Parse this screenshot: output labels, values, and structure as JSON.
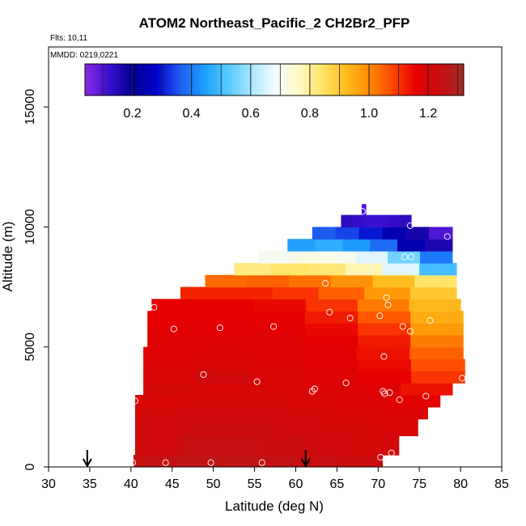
{
  "chart_data": {
    "type": "heatmap",
    "title": "ATOM2 Northeast_Pacific_2 CH2Br2_PFP",
    "annotations": [
      "Flts: 10,11",
      "MMDD: 0219,0221"
    ],
    "xlabel": "Latitude (deg N)",
    "ylabel": "Altitude (m)",
    "xlim": [
      30,
      85
    ],
    "ylim": [
      0,
      17500
    ],
    "xticks": [
      30,
      35,
      40,
      45,
      50,
      55,
      60,
      65,
      70,
      75,
      80,
      85
    ],
    "yticks": [
      0,
      5000,
      10000,
      15000
    ],
    "colorbar": {
      "range": [
        0.04,
        1.32
      ],
      "ticks": [
        "0.2",
        "0.4",
        "0.6",
        "0.8",
        "1.0",
        "1.2"
      ],
      "tick_values": [
        0.2,
        0.4,
        0.6,
        0.8,
        1.0,
        1.2
      ],
      "colors": [
        "#8B2BE2",
        "#3A0FD0",
        "#00008F",
        "#0000CD",
        "#1E5BEF",
        "#1C9BFF",
        "#52C8FF",
        "#A5E6FF",
        "#F2FBFF",
        "#FFF8C8",
        "#FFE56A",
        "#FFBE1F",
        "#FF8C00",
        "#FF4500",
        "#E60000",
        "#C80E0E",
        "#A52A2A"
      ]
    },
    "field_rows": [
      {
        "alt_low": 0,
        "alt_high": 500,
        "lat_min": 40.3,
        "lat_max": 70.5,
        "values": [
          1.25,
          1.26,
          1.26,
          1.25,
          1.24,
          1.23
        ]
      },
      {
        "alt_low": 500,
        "alt_high": 1300,
        "lat_min": 40.5,
        "lat_max": 72.5,
        "values": [
          1.22,
          1.24,
          1.24,
          1.23,
          1.22,
          1.21
        ]
      },
      {
        "alt_low": 1300,
        "alt_high": 2000,
        "lat_min": 40.5,
        "lat_max": 74.8,
        "values": [
          1.22,
          1.23,
          1.23,
          1.22,
          1.21,
          1.2
        ]
      },
      {
        "alt_low": 2000,
        "alt_high": 2500,
        "lat_min": 40.5,
        "lat_max": 76.0,
        "values": [
          1.21,
          1.22,
          1.22,
          1.21,
          1.2,
          1.19
        ]
      },
      {
        "alt_low": 2500,
        "alt_high": 3000,
        "lat_min": 40.5,
        "lat_max": 77.5,
        "values": [
          1.2,
          1.21,
          1.21,
          1.2,
          1.19,
          1.17
        ]
      },
      {
        "alt_low": 3000,
        "alt_high": 3500,
        "lat_min": 41.5,
        "lat_max": 79.0,
        "values": [
          1.21,
          1.2,
          1.2,
          1.19,
          1.18,
          1.14
        ]
      },
      {
        "alt_low": 3500,
        "alt_high": 4000,
        "lat_min": 41.5,
        "lat_max": 80.5,
        "values": [
          1.2,
          1.22,
          1.2,
          1.18,
          1.16,
          1.1
        ]
      },
      {
        "alt_low": 4000,
        "alt_high": 4500,
        "lat_min": 41.5,
        "lat_max": 80.5,
        "values": [
          1.19,
          1.2,
          1.19,
          1.17,
          1.15,
          1.07
        ]
      },
      {
        "alt_low": 4500,
        "alt_high": 5000,
        "lat_min": 41.5,
        "lat_max": 80.3,
        "values": [
          1.18,
          1.19,
          1.18,
          1.17,
          1.14,
          1.05
        ]
      },
      {
        "alt_low": 5000,
        "alt_high": 5500,
        "lat_min": 42.0,
        "lat_max": 80.3,
        "values": [
          1.18,
          1.18,
          1.18,
          1.16,
          1.13,
          1.02
        ]
      },
      {
        "alt_low": 5500,
        "alt_high": 6000,
        "lat_min": 42.0,
        "lat_max": 80.3,
        "values": [
          1.17,
          1.17,
          1.17,
          1.15,
          1.1,
          0.98
        ]
      },
      {
        "alt_low": 6000,
        "alt_high": 6500,
        "lat_min": 42.0,
        "lat_max": 80.3,
        "values": [
          1.16,
          1.16,
          1.16,
          1.13,
          1.06,
          0.95
        ]
      },
      {
        "alt_low": 6500,
        "alt_high": 7000,
        "lat_min": 42.5,
        "lat_max": 80.0,
        "values": [
          1.16,
          1.16,
          1.15,
          1.1,
          1.02,
          0.93
        ]
      },
      {
        "alt_low": 7000,
        "alt_high": 7500,
        "lat_min": 46.0,
        "lat_max": 79.5,
        "values": [
          1.12,
          1.12,
          1.1,
          1.05,
          0.98,
          0.9
        ]
      },
      {
        "alt_low": 7500,
        "alt_high": 8000,
        "lat_min": 49.0,
        "lat_max": 79.5,
        "values": [
          1.04,
          1.05,
          1.03,
          0.99,
          0.92,
          0.84
        ]
      },
      {
        "alt_low": 8000,
        "alt_high": 8500,
        "lat_min": 52.5,
        "lat_max": 79.5,
        "values": [
          0.82,
          0.84,
          0.83,
          0.78,
          0.66,
          0.5
        ]
      },
      {
        "alt_low": 8500,
        "alt_high": 9000,
        "lat_min": 55.5,
        "lat_max": 79.0,
        "values": [
          0.7,
          0.72,
          0.71,
          0.66,
          0.55,
          0.4
        ]
      },
      {
        "alt_low": 9000,
        "alt_high": 9500,
        "lat_min": 59.0,
        "lat_max": 79.0,
        "values": [
          0.45,
          0.47,
          0.44,
          0.38,
          0.24,
          0.16
        ]
      },
      {
        "alt_low": 9500,
        "alt_high": 10000,
        "lat_min": 62.0,
        "lat_max": 79.0,
        "values": [
          0.36,
          0.34,
          0.3,
          0.24,
          0.17,
          0.1
        ]
      },
      {
        "alt_low": 10000,
        "alt_high": 10500,
        "lat_min": 65.5,
        "lat_max": 74.0,
        "values": [
          0.14,
          0.13,
          0.12,
          0.12,
          0.13,
          0.14
        ]
      },
      {
        "alt_low": 10500,
        "alt_high": 10950,
        "lat_min": 68.0,
        "lat_max": 68.5,
        "values": [
          0.1,
          0.1,
          0.1,
          0.1,
          0.1,
          0.1
        ]
      }
    ],
    "samples": [
      {
        "lat": 40.2,
        "alt": 180
      },
      {
        "lat": 44.2,
        "alt": 180
      },
      {
        "lat": 49.7,
        "alt": 180
      },
      {
        "lat": 55.9,
        "alt": 180
      },
      {
        "lat": 70.3,
        "alt": 400
      },
      {
        "lat": 71.6,
        "alt": 580
      },
      {
        "lat": 71.2,
        "alt": 80
      },
      {
        "lat": 40.5,
        "alt": 2750
      },
      {
        "lat": 48.8,
        "alt": 3850
      },
      {
        "lat": 55.3,
        "alt": 3550
      },
      {
        "lat": 62.0,
        "alt": 3150
      },
      {
        "lat": 62.3,
        "alt": 3250
      },
      {
        "lat": 66.1,
        "alt": 3500
      },
      {
        "lat": 70.6,
        "alt": 3150
      },
      {
        "lat": 70.8,
        "alt": 3050
      },
      {
        "lat": 71.4,
        "alt": 3100
      },
      {
        "lat": 72.6,
        "alt": 2800
      },
      {
        "lat": 75.8,
        "alt": 2950
      },
      {
        "lat": 80.2,
        "alt": 3700
      },
      {
        "lat": 70.7,
        "alt": 4600
      },
      {
        "lat": 45.2,
        "alt": 5750
      },
      {
        "lat": 50.8,
        "alt": 5800
      },
      {
        "lat": 57.3,
        "alt": 5850
      },
      {
        "lat": 73.0,
        "alt": 5850
      },
      {
        "lat": 73.9,
        "alt": 5650
      },
      {
        "lat": 76.3,
        "alt": 6100
      },
      {
        "lat": 66.6,
        "alt": 6200
      },
      {
        "lat": 70.2,
        "alt": 6300
      },
      {
        "lat": 42.8,
        "alt": 6650
      },
      {
        "lat": 64.1,
        "alt": 6450
      },
      {
        "lat": 71.0,
        "alt": 7050
      },
      {
        "lat": 71.2,
        "alt": 6750
      },
      {
        "lat": 63.6,
        "alt": 7650
      },
      {
        "lat": 73.2,
        "alt": 8750
      },
      {
        "lat": 74.0,
        "alt": 8750
      },
      {
        "lat": 73.9,
        "alt": 10050
      },
      {
        "lat": 78.4,
        "alt": 9600
      },
      {
        "lat": 68.1,
        "alt": 10650
      }
    ],
    "arrows": [
      {
        "lat": 34.7
      },
      {
        "lat": 61.2
      }
    ]
  }
}
